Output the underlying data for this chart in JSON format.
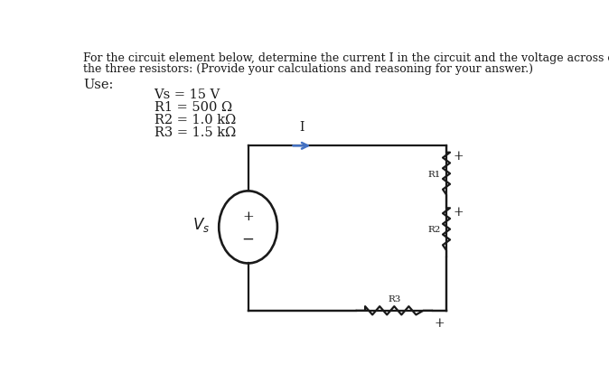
{
  "title_line1": "For the circuit element below, determine the current I in the circuit and the voltage across each of",
  "title_line2": "the three resistors: (Provide your calculations and reasoning for your answer.)",
  "use_label": "Use:",
  "params": [
    "Vs = 15 V",
    "R1 = 500 Ω",
    "R2 = 1.0 kΩ",
    "R3 = 1.5 kΩ"
  ],
  "bg_color": "#ffffff",
  "text_color": "#1a1a1a",
  "circuit_color": "#1a1a1a",
  "arrow_color": "#4472c4",
  "font_size_title": 9.0,
  "font_size_params": 10.5,
  "font_size_labels": 7.5,
  "font_size_signs": 10,
  "lw_circuit": 1.6
}
